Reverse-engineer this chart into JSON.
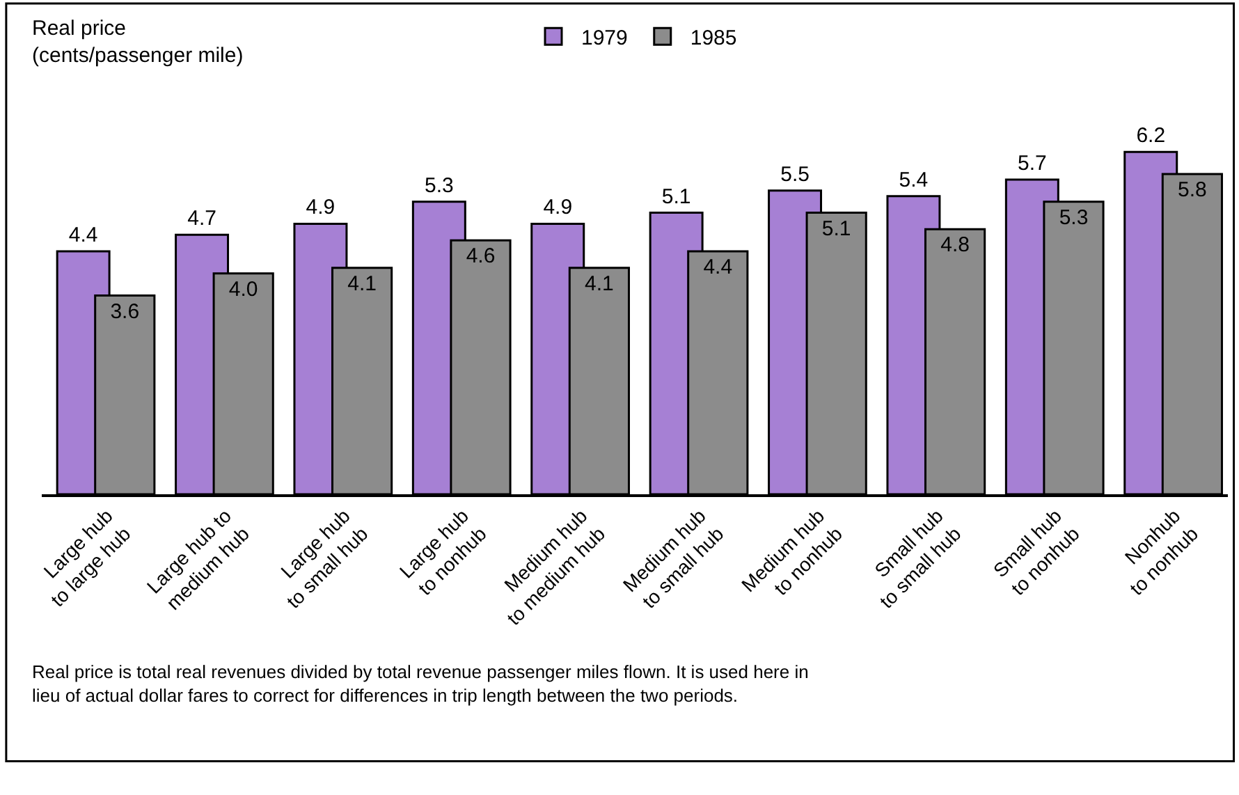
{
  "chart_data": {
    "type": "bar",
    "ylabel": "Real price\n(cents/passenger mile)",
    "categories": [
      "Large hub\nto large hub",
      "Large hub to\nmedium hub",
      "Large hub\nto small hub",
      "Large hub\nto nonhub",
      "Medium hub\nto medium hub",
      "Medium hub\nto small hub",
      "Medium hub\nto nonhub",
      "Small hub\nto small hub",
      "Small hub\nto nonhub",
      "Nonhub\nto nonhub"
    ],
    "series": [
      {
        "name": "1979",
        "color": "#a680d4",
        "values": [
          4.4,
          4.7,
          4.9,
          5.3,
          4.9,
          5.1,
          5.5,
          5.4,
          5.7,
          6.2
        ],
        "value_labels": [
          "4.4",
          "4.7",
          "4.9",
          "5.3",
          "4.9",
          "5.1",
          "5.5",
          "5.4",
          "5.7",
          "6.2"
        ]
      },
      {
        "name": "1985",
        "color": "#8c8c8c",
        "values": [
          3.6,
          4.0,
          4.1,
          4.6,
          4.1,
          4.4,
          5.1,
          4.8,
          5.3,
          5.8
        ],
        "value_labels": [
          "3.6",
          "4.0",
          "4.1",
          "4.6",
          "4.1",
          "4.4",
          "5.1",
          "4.8",
          "5.3",
          "5.8"
        ]
      }
    ],
    "legend": "top",
    "annotations": [
      "Real price is total real revenues divided by total revenue passenger miles flown. It is used here in\nlieu of actual dollar fares to correct for differences in trip length between the two periods."
    ]
  }
}
